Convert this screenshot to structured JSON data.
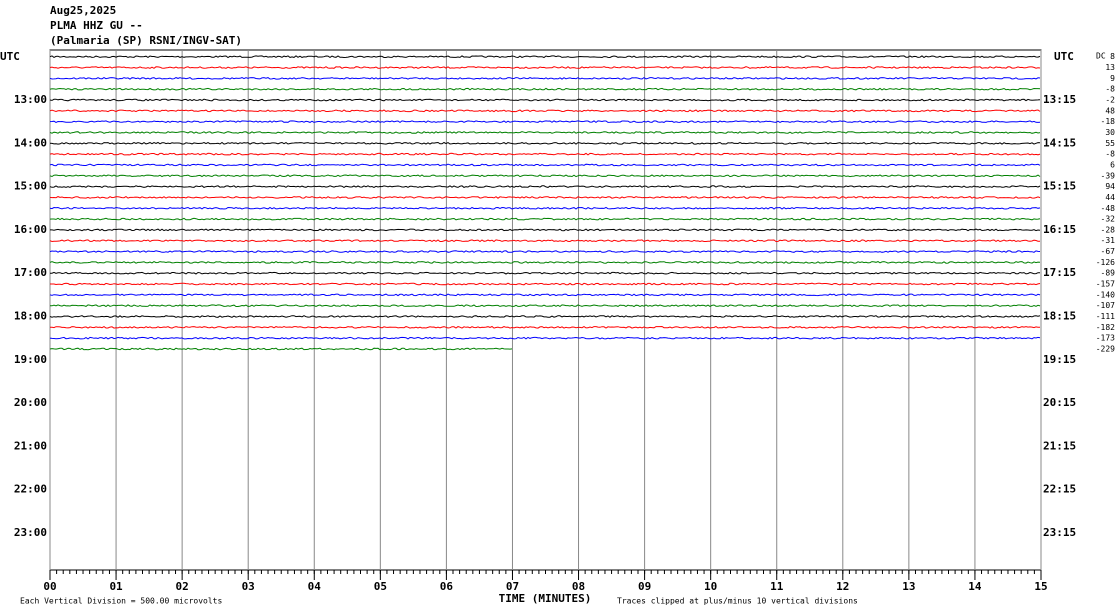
{
  "chart_data": {
    "type": "helicorder",
    "title_lines": [
      "Aug25,2025",
      "PLMA HHZ GU --",
      "(Palmaria (SP) RSNI/INGV-SAT)"
    ],
    "left_axis_title": "UTC",
    "right_axis_title": "UTC",
    "row_labels_left": [
      "13:00",
      "14:00",
      "15:00",
      "16:00",
      "17:00",
      "18:00",
      "19:00",
      "20:00",
      "21:00",
      "22:00",
      "23:00"
    ],
    "row_labels_right": [
      "13:15",
      "14:15",
      "15:15",
      "16:15",
      "17:15",
      "18:15",
      "19:15",
      "20:15",
      "21:15",
      "22:15",
      "23:15"
    ],
    "dc_label": "DC",
    "dc_offsets": [
      8,
      13,
      9,
      -8,
      -2,
      48,
      -18,
      30,
      55,
      -8,
      6,
      -39,
      94,
      44,
      -48,
      -32,
      -28,
      -31,
      -67,
      -126,
      -89,
      -157,
      -140,
      -107,
      -111,
      -182,
      -173,
      -229
    ],
    "trace_colors": [
      "#000000",
      "#ff0000",
      "#0000ff",
      "#008000"
    ],
    "data_end_minute": 7,
    "xlabel": "TIME (MINUTES)",
    "xlim": [
      0,
      15
    ],
    "xticks": [
      {
        "value": 0,
        "label": "00"
      },
      {
        "value": 1,
        "label": "01"
      },
      {
        "value": 2,
        "label": "02"
      },
      {
        "value": 3,
        "label": "03"
      },
      {
        "value": 4,
        "label": "04"
      },
      {
        "value": 5,
        "label": "05"
      },
      {
        "value": 6,
        "label": "06"
      },
      {
        "value": 7,
        "label": "07"
      },
      {
        "value": 8,
        "label": "08"
      },
      {
        "value": 9,
        "label": "09"
      },
      {
        "value": 10,
        "label": "10"
      },
      {
        "value": 11,
        "label": "11"
      },
      {
        "value": 12,
        "label": "12"
      },
      {
        "value": 13,
        "label": "13"
      },
      {
        "value": 14,
        "label": "14"
      },
      {
        "value": 15,
        "label": "15"
      }
    ],
    "footer_left": "Each Vertical Division =  500.00 microvolts",
    "footer_right": "Traces clipped at plus/minus 10 vertical divisions"
  }
}
